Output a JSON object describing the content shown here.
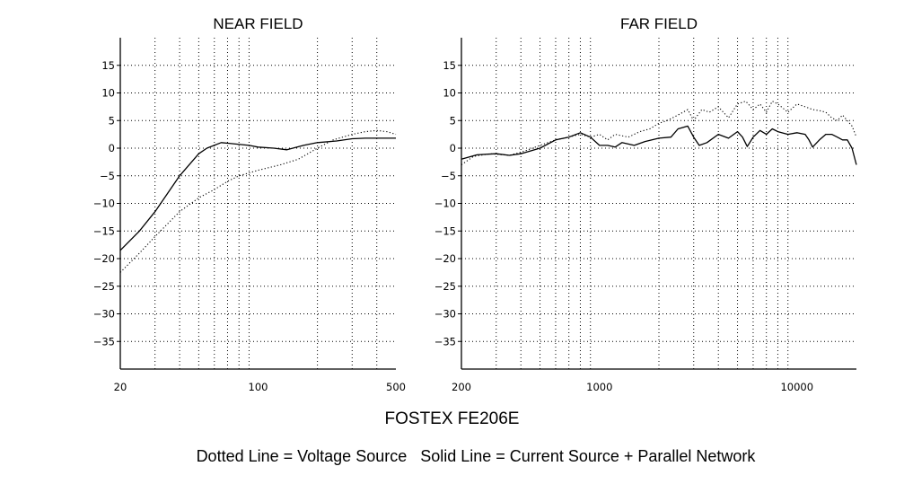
{
  "title": "FOSTEX FE206E",
  "caption": "Dotted Line = Voltage Source   Solid Line = Current Source + Parallel Network",
  "chart_data": [
    {
      "type": "line",
      "title": "NEAR FIELD",
      "x_scale": "log",
      "xlim": [
        20,
        500
      ],
      "ylim": [
        -40,
        20
      ],
      "x_ticks": [
        20,
        100,
        500
      ],
      "x_tick_labels": [
        "20",
        "100",
        "500"
      ],
      "x_minor_gridlines": [
        30,
        40,
        50,
        60,
        70,
        80,
        90,
        200,
        300,
        400
      ],
      "y_ticks": [
        15,
        10,
        5,
        0,
        -5,
        -10,
        -15,
        -20,
        -25,
        -30,
        -35
      ],
      "y_tick_labels": [
        "15",
        "10",
        "5",
        "0",
        "−5",
        "−10",
        "−15",
        "−20",
        "−25",
        "−30",
        "−35"
      ],
      "grid": true,
      "series": [
        {
          "style": "dotted",
          "points": [
            [
              20,
              -22.5
            ],
            [
              25,
              -19
            ],
            [
              30,
              -16
            ],
            [
              40,
              -11.5
            ],
            [
              50,
              -9
            ],
            [
              60,
              -7.5
            ],
            [
              70,
              -6
            ],
            [
              80,
              -5
            ],
            [
              100,
              -4
            ],
            [
              130,
              -3
            ],
            [
              160,
              -2
            ],
            [
              200,
              0
            ],
            [
              240,
              1.5
            ],
            [
              300,
              2.5
            ],
            [
              350,
              3
            ],
            [
              400,
              3.2
            ],
            [
              450,
              3
            ],
            [
              500,
              2.5
            ]
          ]
        },
        {
          "style": "solid",
          "points": [
            [
              20,
              -18.5
            ],
            [
              25,
              -15
            ],
            [
              30,
              -11.5
            ],
            [
              40,
              -5
            ],
            [
              50,
              -1
            ],
            [
              55,
              0
            ],
            [
              65,
              1
            ],
            [
              75,
              0.8
            ],
            [
              90,
              0.5
            ],
            [
              100,
              0.2
            ],
            [
              120,
              0
            ],
            [
              140,
              -0.3
            ],
            [
              170,
              0.5
            ],
            [
              200,
              1
            ],
            [
              250,
              1.3
            ],
            [
              300,
              1.7
            ],
            [
              350,
              1.8
            ],
            [
              400,
              1.8
            ],
            [
              450,
              1.8
            ],
            [
              500,
              1.8
            ]
          ]
        }
      ]
    },
    {
      "type": "line",
      "title": "FAR FIELD",
      "x_scale": "log",
      "xlim": [
        200,
        20000
      ],
      "ylim": [
        -40,
        20
      ],
      "x_ticks": [
        200,
        1000,
        10000
      ],
      "x_tick_labels": [
        "200",
        "1000",
        "10000"
      ],
      "x_minor_gridlines": [
        300,
        400,
        500,
        600,
        700,
        800,
        900,
        2000,
        3000,
        4000,
        5000,
        6000,
        7000,
        8000,
        9000
      ],
      "y_ticks": [
        15,
        10,
        5,
        0,
        -5,
        -10,
        -15,
        -20,
        -25,
        -30,
        -35
      ],
      "y_tick_labels": [
        "15",
        "10",
        "5",
        "0",
        "−5",
        "−10",
        "−15",
        "−20",
        "−25",
        "−30",
        "−35"
      ],
      "grid": true,
      "series": [
        {
          "style": "dotted",
          "points": [
            [
              200,
              -3
            ],
            [
              230,
              -1.5
            ],
            [
              280,
              -1
            ],
            [
              350,
              -1.3
            ],
            [
              420,
              -0.5
            ],
            [
              500,
              0.5
            ],
            [
              600,
              1.5
            ],
            [
              700,
              2
            ],
            [
              800,
              2.5
            ],
            [
              900,
              2
            ],
            [
              1000,
              2.5
            ],
            [
              1100,
              1.5
            ],
            [
              1200,
              2.5
            ],
            [
              1400,
              2
            ],
            [
              1600,
              3
            ],
            [
              1800,
              3.5
            ],
            [
              2000,
              4.5
            ],
            [
              2200,
              5
            ],
            [
              2500,
              6
            ],
            [
              2800,
              7
            ],
            [
              3000,
              5
            ],
            [
              3300,
              7
            ],
            [
              3600,
              6.5
            ],
            [
              4000,
              7.5
            ],
            [
              4500,
              5.5
            ],
            [
              5000,
              8
            ],
            [
              5500,
              8.5
            ],
            [
              6000,
              7
            ],
            [
              6500,
              8
            ],
            [
              7000,
              6.5
            ],
            [
              7500,
              8.5
            ],
            [
              8000,
              8
            ],
            [
              9000,
              6.5
            ],
            [
              10000,
              8
            ],
            [
              11000,
              7.5
            ],
            [
              12000,
              7
            ],
            [
              13000,
              6.8
            ],
            [
              14000,
              6.5
            ],
            [
              15000,
              5.5
            ],
            [
              16000,
              5
            ],
            [
              17000,
              6
            ],
            [
              18000,
              5
            ],
            [
              19000,
              4
            ],
            [
              20000,
              2
            ]
          ]
        },
        {
          "style": "solid",
          "points": [
            [
              200,
              -2
            ],
            [
              240,
              -1.2
            ],
            [
              300,
              -1
            ],
            [
              350,
              -1.3
            ],
            [
              400,
              -1
            ],
            [
              500,
              0
            ],
            [
              600,
              1.5
            ],
            [
              700,
              2
            ],
            [
              800,
              2.8
            ],
            [
              900,
              2
            ],
            [
              1000,
              0.5
            ],
            [
              1100,
              0.5
            ],
            [
              1200,
              0.2
            ],
            [
              1300,
              1
            ],
            [
              1500,
              0.5
            ],
            [
              1700,
              1.2
            ],
            [
              2000,
              1.8
            ],
            [
              2300,
              2
            ],
            [
              2500,
              3.5
            ],
            [
              2800,
              4
            ],
            [
              3000,
              2
            ],
            [
              3200,
              0.5
            ],
            [
              3500,
              1
            ],
            [
              4000,
              2.5
            ],
            [
              4500,
              1.8
            ],
            [
              5000,
              3
            ],
            [
              5300,
              2
            ],
            [
              5600,
              0.3
            ],
            [
              6000,
              2
            ],
            [
              6500,
              3.2
            ],
            [
              7000,
              2.5
            ],
            [
              7500,
              3.5
            ],
            [
              8000,
              3
            ],
            [
              9000,
              2.5
            ],
            [
              10000,
              2.8
            ],
            [
              11000,
              2.5
            ],
            [
              11500,
              1.5
            ],
            [
              12000,
              0.2
            ],
            [
              13000,
              1.5
            ],
            [
              14000,
              2.5
            ],
            [
              15000,
              2.5
            ],
            [
              16000,
              2
            ],
            [
              17000,
              1.5
            ],
            [
              18000,
              1.5
            ],
            [
              19000,
              0
            ],
            [
              20000,
              -3
            ]
          ]
        }
      ]
    }
  ]
}
